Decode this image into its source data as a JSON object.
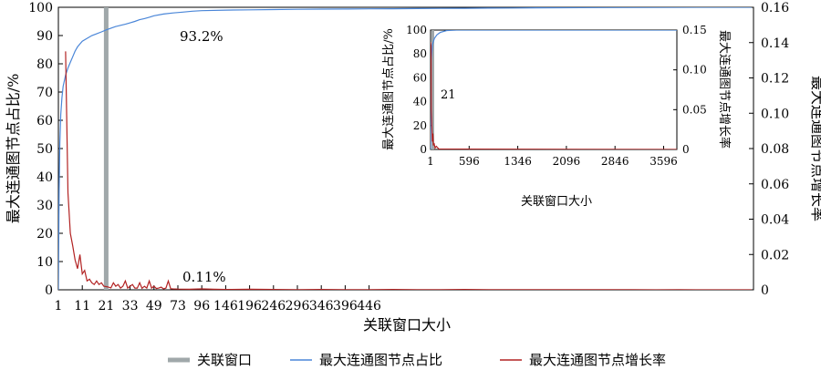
{
  "chart_data": [
    {
      "type": "line",
      "role": "main",
      "xlabel": "关联窗口大小",
      "ylabel_left": "最大连通图节点占比/%",
      "ylabel_right": "最大连通图节点增长率",
      "x_ticks": [
        "1",
        "11",
        "21",
        "33",
        "49",
        "73",
        "96",
        "146",
        "196",
        "246",
        "296",
        "346",
        "396",
        "446"
      ],
      "y_left_ticks": [
        "0",
        "10",
        "20",
        "30",
        "40",
        "50",
        "60",
        "70",
        "80",
        "90",
        "100"
      ],
      "y_right_ticks": [
        "0",
        "0.02",
        "0.04",
        "0.06",
        "0.08",
        "0.10",
        "0.12",
        "0.14",
        "0.16"
      ],
      "ylim_left": [
        0,
        100
      ],
      "ylim_right": [
        0,
        0.16
      ],
      "window_x": 21,
      "window_label_pct": "93.2%",
      "window_label_rate": "0.11%",
      "legend": {
        "placement": "bottom",
        "items": [
          "关联窗口",
          "最大连通图节点占比",
          "最大连通图节点增长率"
        ]
      },
      "colors": {
        "window": "#a0a8aa",
        "ratio": "#4a86d8",
        "rate": "#b22222"
      },
      "series": [
        {
          "name": "最大连通图节点占比",
          "axis": "left",
          "x_index": [
            0,
            0.3,
            0.6,
            1,
            1.5,
            2,
            3,
            4,
            5,
            6,
            7,
            8,
            9,
            10,
            12,
            14,
            16,
            18,
            20,
            22,
            24,
            26,
            28,
            30,
            32,
            34,
            36,
            38,
            40,
            44,
            48,
            52,
            56,
            60,
            70,
            80,
            90,
            100,
            110,
            120,
            130,
            140,
            150,
            160,
            170,
            180,
            190,
            200,
            210,
            230,
            250,
            270,
            290
          ],
          "values": [
            0,
            35,
            52,
            62,
            68,
            72,
            76,
            78.5,
            80.5,
            82.5,
            84.5,
            86,
            87,
            88,
            89,
            90,
            90.6,
            91.3,
            92,
            92.6,
            93.2,
            93.6,
            94,
            94.5,
            95,
            95.6,
            96,
            96.5,
            97,
            97.6,
            98,
            98.3,
            98.6,
            98.8,
            99,
            99.1,
            99.2,
            99.3,
            99.35,
            99.4,
            99.45,
            99.5,
            99.55,
            99.6,
            99.65,
            99.7,
            99.75,
            99.8,
            99.85,
            99.9,
            99.95,
            100,
            100
          ]
        },
        {
          "name": "最大连通图节点增长率",
          "axis": "right",
          "x_index": [
            3,
            4,
            5,
            6,
            7,
            8,
            9,
            10,
            11,
            12,
            13,
            14,
            15,
            16,
            17,
            18,
            19,
            20,
            21,
            22,
            23,
            24,
            25,
            26,
            27,
            28,
            29,
            30,
            31,
            32,
            33,
            34,
            35,
            36,
            37,
            38,
            39,
            40,
            41,
            42,
            43,
            44,
            45,
            46,
            47,
            48,
            50,
            55,
            60,
            65,
            70,
            80,
            90,
            100,
            110,
            120,
            130,
            140,
            150,
            160,
            170,
            180,
            190,
            200,
            210,
            220,
            230,
            240,
            250,
            260,
            270,
            280,
            290
          ],
          "values": [
            0.135,
            0.055,
            0.032,
            0.025,
            0.017,
            0.012,
            0.02,
            0.009,
            0.011,
            0.005,
            0.006,
            0.004,
            0.003,
            0.005,
            0.003,
            0.004,
            0.002,
            0.0018,
            0.0015,
            0.0011,
            0.004,
            0.002,
            0.003,
            0.001,
            0.002,
            0.005,
            0.001,
            0.002,
            0.003,
            0.001,
            0.001,
            0.004,
            0.0008,
            0.002,
            0.001,
            0.005,
            0.001,
            0.002,
            0.0007,
            0.001,
            0.0015,
            0.0005,
            0.001,
            0.005,
            0.0006,
            0.0005,
            0.0004,
            0.0003,
            0.0005,
            0.0003,
            0.0002,
            0.0003,
            0.0002,
            0.0001,
            0.0002,
            0.0001,
            0.0001,
            0.0002,
            0.0001,
            0.0001,
            0.0002,
            0.0001,
            0.0001,
            0.0001,
            0.0001,
            0.0001,
            0.0001,
            0.0001,
            0,
            0.0001,
            0,
            0,
            0
          ]
        }
      ]
    },
    {
      "type": "line",
      "role": "inset",
      "xlabel": "关联窗口大小",
      "ylabel_left": "最大连通图节点占比/%",
      "ylabel_right": "最大连通图节点增长率",
      "x_ticks": [
        "1",
        "596",
        "1346",
        "2096",
        "2846",
        "3596"
      ],
      "y_left_ticks": [
        "0",
        "20",
        "40",
        "60",
        "80",
        "100"
      ],
      "y_right_ticks": [
        "0",
        "0.05",
        "0.10",
        "0.15"
      ],
      "window_label": "21",
      "xlim": [
        1,
        3800
      ],
      "ylim_left": [
        0,
        100
      ],
      "ylim_right": [
        0,
        0.15
      ]
    }
  ]
}
